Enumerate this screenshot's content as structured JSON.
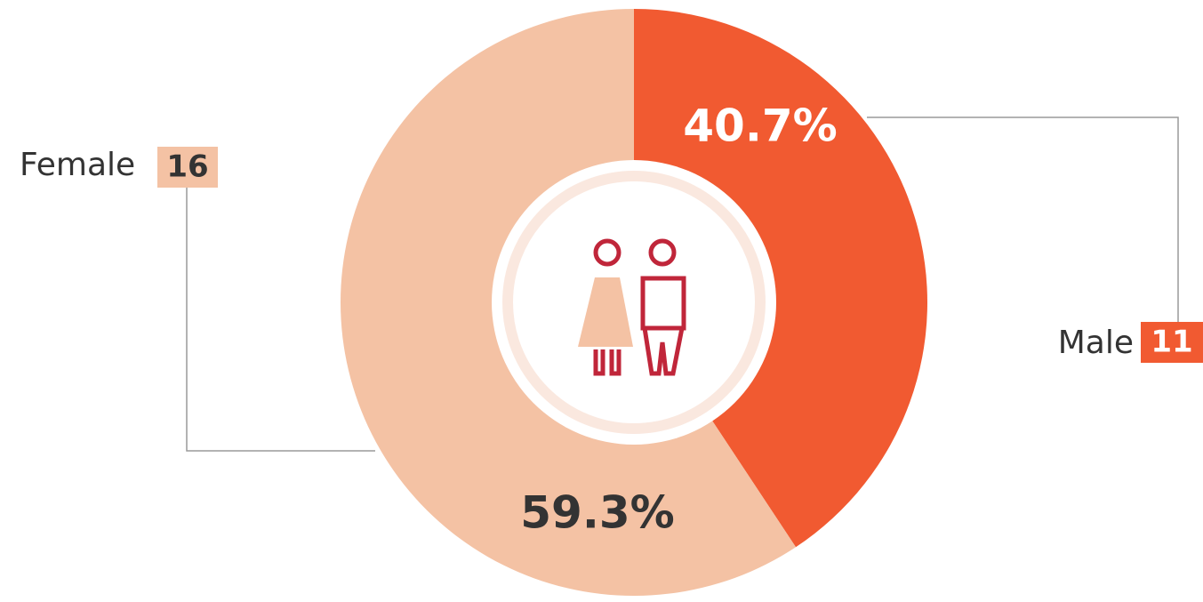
{
  "chart_data": {
    "type": "donut",
    "categories": [
      "Male",
      "Female"
    ],
    "values": [
      40.7,
      59.3
    ],
    "value_labels": [
      "40.7%",
      "59.3%"
    ],
    "counts": [
      11,
      16
    ],
    "colors": [
      "#f15a31",
      "#f4c2a4"
    ]
  }
}
